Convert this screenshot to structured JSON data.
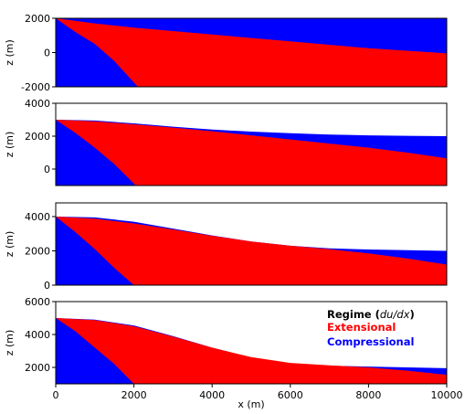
{
  "colors": {
    "extensional": "#ff0000",
    "compressional": "#0000ff"
  },
  "legend": {
    "title": "Regime (du/dx)",
    "title_prefix": "Regime (",
    "title_math": "du/dx",
    "title_suffix": ")",
    "items": [
      {
        "label": "Extensional",
        "color": "#ff0000"
      },
      {
        "label": "Compressional",
        "color": "#0000ff"
      }
    ],
    "placement": "lower-right of bottom panel"
  },
  "chart_data": [
    {
      "type": "area",
      "panel": 1,
      "xlabel": "",
      "ylabel": "z (m)",
      "xlim": [
        0,
        10000
      ],
      "ylim": [
        -2000,
        2000
      ],
      "yticks": [
        -2000,
        0,
        2000
      ],
      "xticks": [],
      "surface": {
        "x": [
          0,
          10000
        ],
        "z": [
          2000,
          2000
        ]
      },
      "extensional_top": {
        "x": [
          0,
          1000,
          2000,
          4000,
          6000,
          8000,
          10000
        ],
        "z": [
          2000,
          1700,
          1450,
          1050,
          650,
          250,
          -50
        ]
      },
      "compressional_wedge": {
        "x": [
          0,
          500,
          1000,
          1500,
          2100
        ],
        "z": [
          2000,
          1200,
          500,
          -500,
          -2000
        ]
      }
    },
    {
      "type": "area",
      "panel": 2,
      "xlabel": "",
      "ylabel": "z (m)",
      "xlim": [
        0,
        10000
      ],
      "ylim": [
        -1000,
        4000
      ],
      "yticks": [
        0,
        2000,
        4000
      ],
      "xticks": [],
      "surface": {
        "x": [
          0,
          1000,
          2000,
          3000,
          4000,
          5000,
          6000,
          7000,
          8000,
          9000,
          10000
        ],
        "z": [
          3000,
          2950,
          2780,
          2580,
          2400,
          2280,
          2180,
          2100,
          2050,
          2020,
          2000
        ]
      },
      "extensional_top": {
        "x": [
          0,
          1000,
          2000,
          3000,
          4000,
          5000,
          6000,
          7000,
          8000,
          9000,
          10000
        ],
        "z": [
          3000,
          2900,
          2720,
          2520,
          2300,
          2050,
          1800,
          1550,
          1300,
          1000,
          650
        ]
      },
      "compressional_wedge": {
        "x": [
          0,
          500,
          1000,
          1500,
          2050
        ],
        "z": [
          3000,
          2200,
          1300,
          300,
          -1000
        ]
      }
    },
    {
      "type": "area",
      "panel": 3,
      "xlabel": "",
      "ylabel": "z (m)",
      "xlim": [
        0,
        10000
      ],
      "ylim": [
        0,
        4800
      ],
      "yticks": [
        0,
        2000,
        4000
      ],
      "xticks": [],
      "surface": {
        "x": [
          0,
          1000,
          2000,
          3000,
          4000,
          5000,
          6000,
          7000,
          8000,
          9000,
          10000
        ],
        "z": [
          4000,
          3950,
          3700,
          3300,
          2900,
          2550,
          2300,
          2150,
          2080,
          2040,
          2000
        ]
      },
      "extensional_top": {
        "x": [
          0,
          1000,
          2000,
          3000,
          4000,
          5000,
          6000,
          7000,
          8000,
          9000,
          10000
        ],
        "z": [
          4000,
          3880,
          3600,
          3250,
          2880,
          2550,
          2300,
          2100,
          1850,
          1550,
          1200
        ]
      },
      "compressional_wedge": {
        "x": [
          0,
          500,
          1000,
          1500,
          2000
        ],
        "z": [
          4000,
          3100,
          2100,
          1000,
          0
        ]
      }
    },
    {
      "type": "area",
      "panel": 4,
      "xlabel": "x (m)",
      "ylabel": "z (m)",
      "xlim": [
        0,
        10000
      ],
      "ylim": [
        1000,
        6000
      ],
      "yticks": [
        2000,
        4000,
        6000
      ],
      "xticks": [
        0,
        2000,
        4000,
        6000,
        8000,
        10000
      ],
      "surface": {
        "x": [
          0,
          1000,
          2000,
          3000,
          4000,
          5000,
          6000,
          7000,
          8000,
          9000,
          10000
        ],
        "z": [
          5000,
          4900,
          4550,
          3900,
          3200,
          2600,
          2250,
          2100,
          2050,
          2000,
          1950
        ]
      },
      "extensional_top": {
        "x": [
          0,
          1000,
          2000,
          3000,
          4000,
          5000,
          6000,
          7000,
          8000,
          9000,
          10000
        ],
        "z": [
          5000,
          4880,
          4500,
          3880,
          3200,
          2620,
          2270,
          2120,
          2000,
          1800,
          1550
        ]
      },
      "compressional_wedge": {
        "x": [
          0,
          500,
          1000,
          1500,
          2000
        ],
        "z": [
          5000,
          4200,
          3200,
          2200,
          1000
        ]
      }
    }
  ]
}
